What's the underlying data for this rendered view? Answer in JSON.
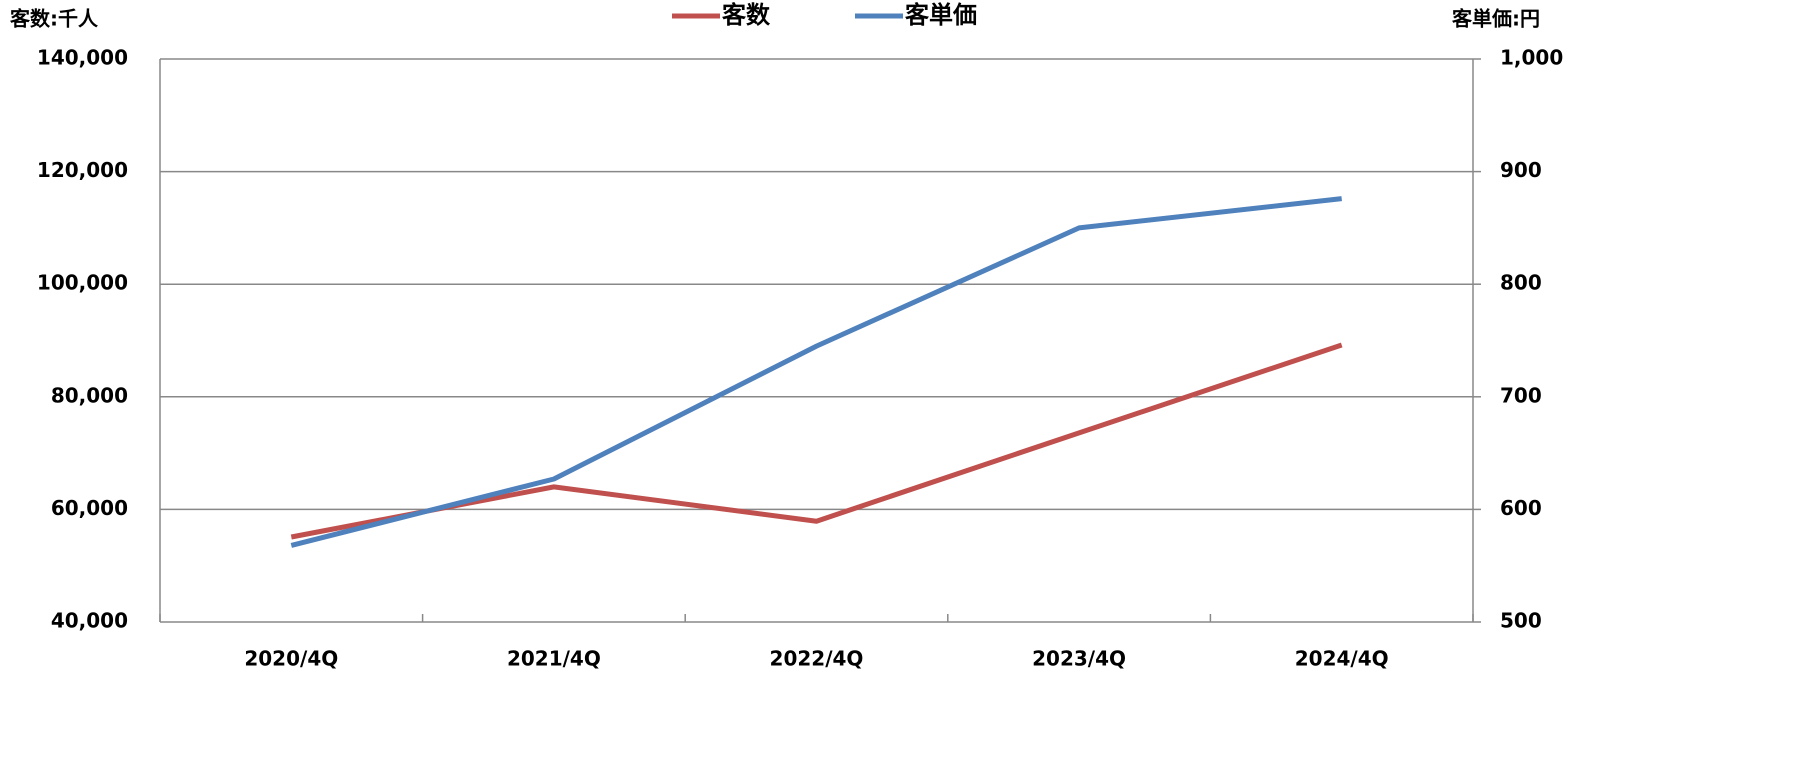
{
  "chart_data": {
    "type": "line",
    "y_label": "客数:千人",
    "y2_label": "客単価:円",
    "categories": [
      "2020/4Q",
      "2021/4Q",
      "2022/4Q",
      "2023/4Q",
      "2024/4Q"
    ],
    "series": [
      {
        "name": "客数",
        "color": "#c0504d",
        "values": [
          55100,
          64000,
          57900,
          73600,
          89200
        ]
      },
      {
        "name": "客単価",
        "color": "#4f81bd",
        "axis": "y2",
        "values": [
          568,
          627,
          745,
          850,
          876
        ]
      }
    ],
    "ylim": [
      40000,
      140000
    ],
    "yticks": [
      {
        "value": 40000,
        "label": "40,000"
      },
      {
        "value": 60000,
        "label": "60,000"
      },
      {
        "value": 80000,
        "label": "80,000"
      },
      {
        "value": 100000,
        "label": "100,000"
      },
      {
        "value": 120000,
        "label": "120,000"
      },
      {
        "value": 140000,
        "label": "140,000"
      }
    ],
    "y2lim": [
      500,
      1000
    ],
    "y2ticks": [
      500,
      600,
      700,
      800,
      900,
      {
        "value": 1000,
        "label": "1,000"
      }
    ],
    "grid": true
  }
}
